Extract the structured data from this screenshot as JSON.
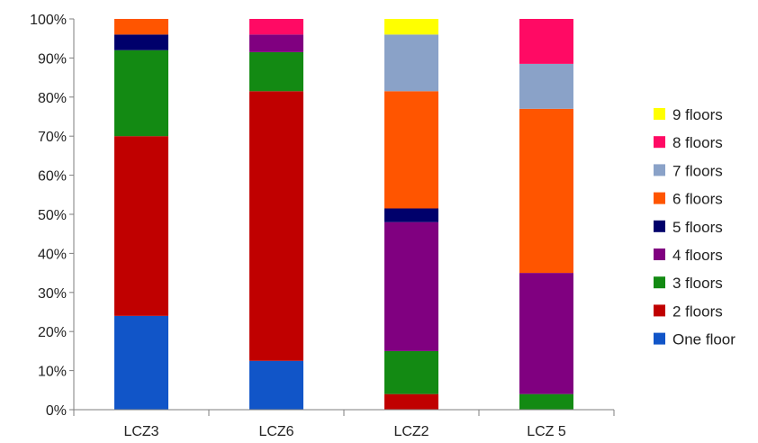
{
  "chart_data": {
    "type": "bar",
    "stacked": true,
    "title": "",
    "xlabel": "",
    "ylabel": "",
    "ylim": [
      0,
      100
    ],
    "yticks": [
      "0%",
      "10%",
      "20%",
      "30%",
      "40%",
      "50%",
      "60%",
      "70%",
      "80%",
      "90%",
      "100%"
    ],
    "categories": [
      "LCZ3",
      "LCZ6",
      "LCZ2",
      "LCZ 5"
    ],
    "legend_position": "right",
    "grid": false,
    "series": [
      {
        "name": "One floor",
        "color": "#1155c8",
        "values": [
          24,
          12.5,
          0,
          0
        ]
      },
      {
        "name": "2 floors",
        "color": "#c00000",
        "values": [
          46,
          69,
          4,
          0
        ]
      },
      {
        "name": "3 floors",
        "color": "#138a13",
        "values": [
          22,
          10,
          11,
          4
        ]
      },
      {
        "name": "4 floors",
        "color": "#800080",
        "values": [
          0,
          4.5,
          33,
          31
        ]
      },
      {
        "name": "5 floors",
        "color": "#00006b",
        "values": [
          4,
          0,
          3.5,
          0
        ]
      },
      {
        "name": "6 floors",
        "color": "#ff5500",
        "values": [
          4,
          0,
          30,
          42
        ]
      },
      {
        "name": "7 floors",
        "color": "#8aa2c8",
        "values": [
          0,
          0,
          14.5,
          11.5
        ]
      },
      {
        "name": "8 floors",
        "color": "#ff0a64",
        "values": [
          0,
          4,
          0,
          11.5
        ]
      },
      {
        "name": "9 floors",
        "color": "#ffff00",
        "values": [
          0,
          0,
          4,
          0
        ]
      }
    ]
  }
}
